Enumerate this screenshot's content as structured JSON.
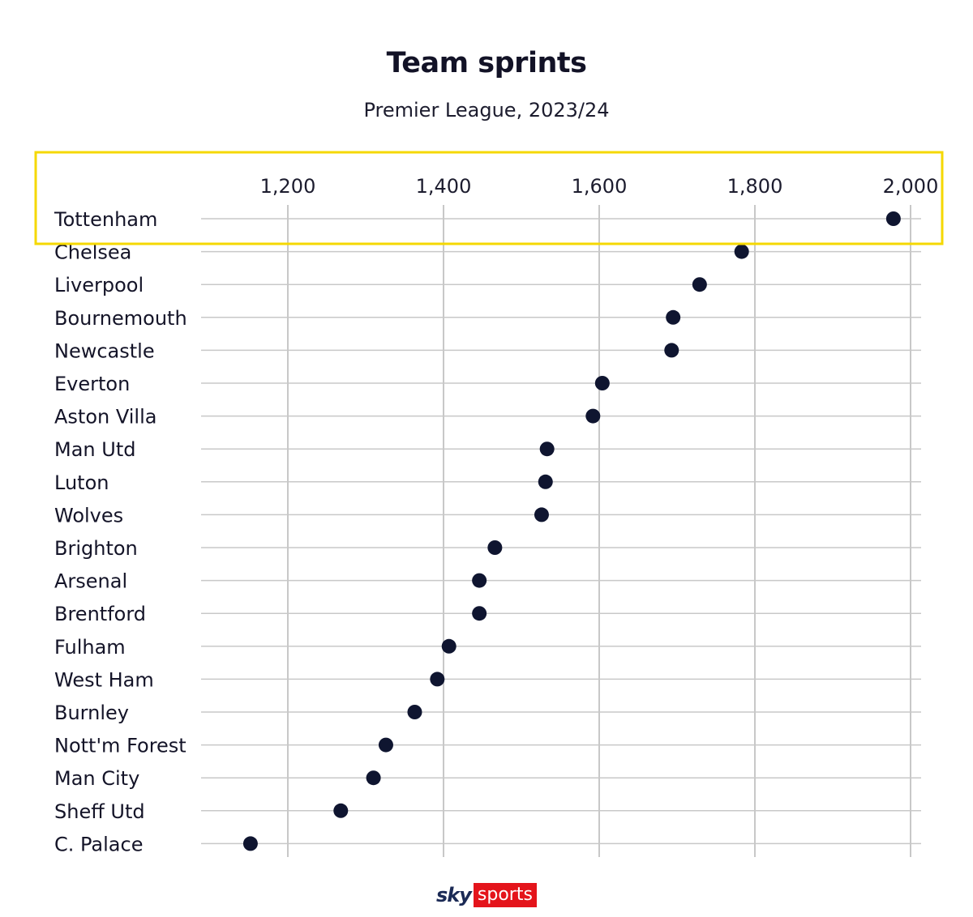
{
  "title": "Team sprints",
  "subtitle": "Premier League, 2023/24",
  "logo": {
    "sky": "sky",
    "sports": "sports"
  },
  "colors": {
    "dot": "#0f1530",
    "grid": "#c8c8c8",
    "highlight": "#f5d800",
    "logo_red": "#e4141b"
  },
  "highlight": {
    "team": "Tottenham"
  },
  "chart_data": {
    "type": "scatter",
    "title": "Team sprints",
    "subtitle": "Premier League, 2023/24",
    "xlim": [
      1100,
      2000
    ],
    "xticks": [
      1200,
      1400,
      1600,
      1800,
      2000
    ],
    "xtick_labels": [
      "1,200",
      "1,400",
      "1,600",
      "1,800",
      "2,000"
    ],
    "grid": true,
    "categories": [
      "Tottenham",
      "Chelsea",
      "Liverpool",
      "Bournemouth",
      "Newcastle",
      "Everton",
      "Aston Villa",
      "Man Utd",
      "Luton",
      "Wolves",
      "Brighton",
      "Arsenal",
      "Brentford",
      "Fulham",
      "West Ham",
      "Burnley",
      "Nott'm Forest",
      "Man City",
      "Sheff Utd",
      "C. Palace"
    ],
    "values": [
      1978,
      1783,
      1729,
      1695,
      1693,
      1604,
      1592,
      1533,
      1531,
      1526,
      1466,
      1446,
      1446,
      1407,
      1392,
      1363,
      1326,
      1310,
      1268,
      1152
    ]
  }
}
